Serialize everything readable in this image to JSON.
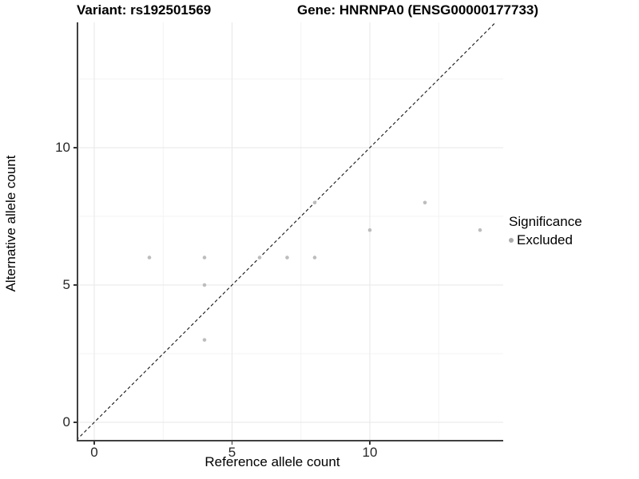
{
  "header": {
    "variant_title": "Variant: rs192501569",
    "gene_title": "Gene: HNRNPA0 (ENSG00000177733)"
  },
  "chart_data": {
    "type": "scatter",
    "title": "Variant: rs192501569 / Gene: HNRNPA0 (ENSG00000177733)",
    "xlabel": "Reference allele count",
    "ylabel": "Alternative allele count",
    "x_ticks": [
      0,
      5,
      10
    ],
    "y_ticks": [
      0,
      5,
      10
    ],
    "x_minor_gridlines": [
      2.5,
      7.5,
      12.5
    ],
    "y_minor_gridlines": [
      2.5,
      7.5,
      12.5
    ],
    "xlim": [
      -0.65,
      14.85
    ],
    "ylim": [
      -0.67,
      14.55
    ],
    "points": [
      {
        "x": 2,
        "y": 6,
        "significance": "Excluded"
      },
      {
        "x": 4,
        "y": 3,
        "significance": "Excluded"
      },
      {
        "x": 4,
        "y": 5,
        "significance": "Excluded"
      },
      {
        "x": 4,
        "y": 6,
        "significance": "Excluded"
      },
      {
        "x": 6,
        "y": 6,
        "significance": "Excluded"
      },
      {
        "x": 7,
        "y": 6,
        "significance": "Excluded"
      },
      {
        "x": 8,
        "y": 6,
        "significance": "Excluded"
      },
      {
        "x": 8,
        "y": 8,
        "significance": "Excluded"
      },
      {
        "x": 10,
        "y": 7,
        "significance": "Excluded"
      },
      {
        "x": 12,
        "y": 8,
        "significance": "Excluded"
      },
      {
        "x": 14,
        "y": 7,
        "significance": "Excluded"
      }
    ],
    "identity_line": {
      "type": "y=x",
      "style": "dashed",
      "color": "#141414"
    },
    "colors": {
      "point": "#bdbdbd",
      "legend_key": "#ababab",
      "major_gridline": "#e7e7e7",
      "minor_gridline": "#f3f3f3",
      "axis_line": "#404040"
    },
    "grid": true,
    "legend": {
      "position": "right",
      "title": "Significance",
      "entries": [
        {
          "label": "Excluded",
          "color": "#ababab",
          "marker": "dot"
        }
      ]
    }
  }
}
